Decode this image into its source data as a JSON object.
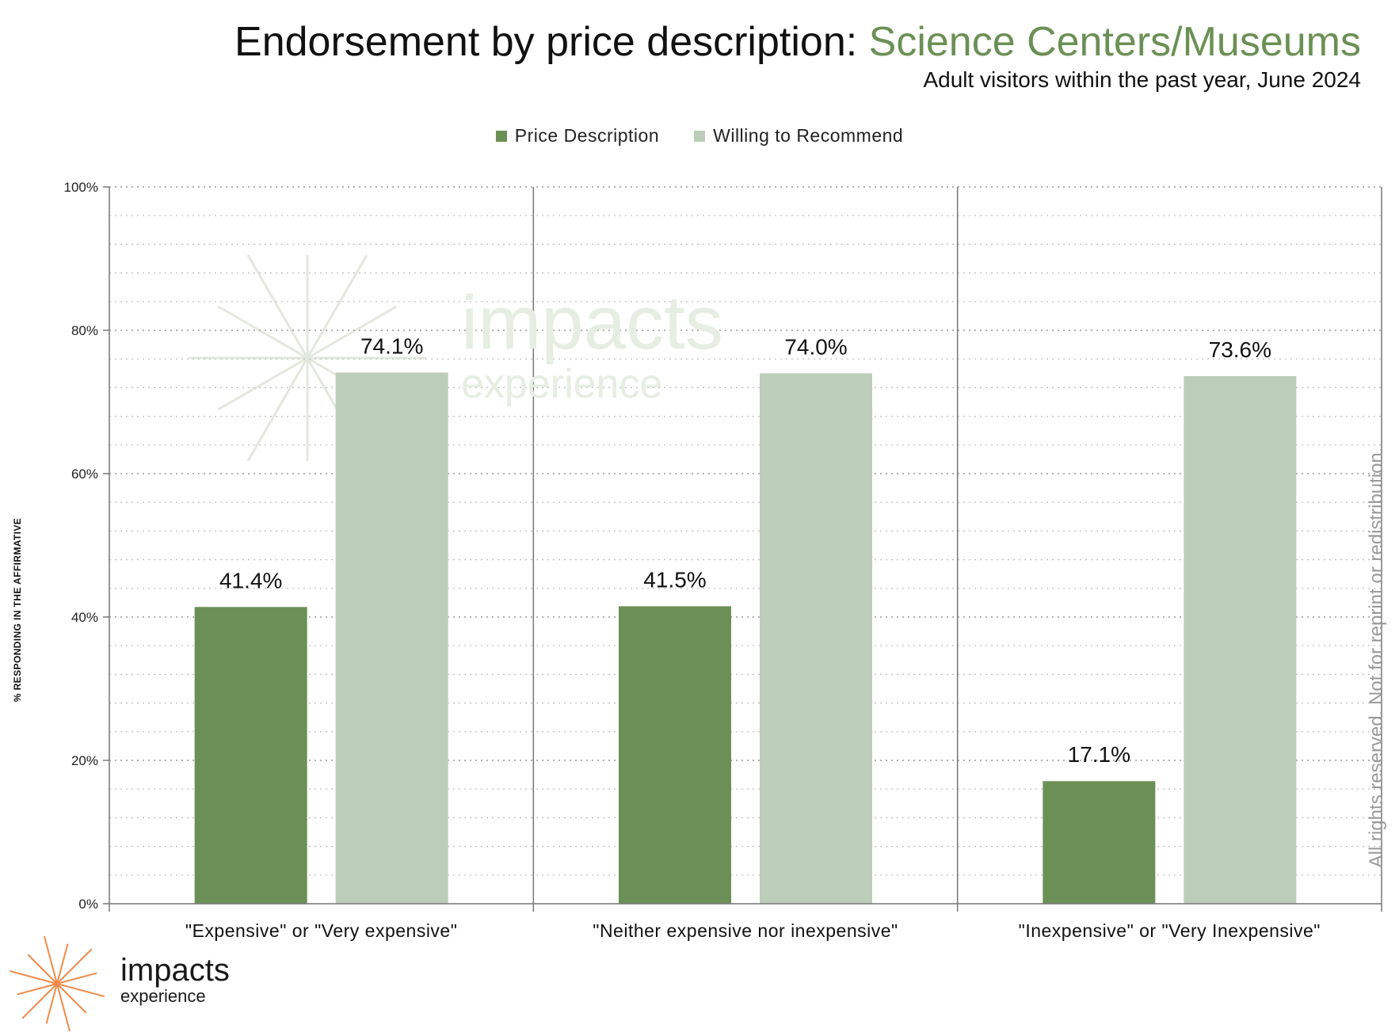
{
  "header": {
    "title_prefix": "Endorsement by price description: ",
    "title_accent": "Science Centers/Museums",
    "subtitle": "Adult visitors within the past year, June 2024"
  },
  "colors": {
    "price_description": "#6b9055",
    "willing_to_recommend": "#bccdb9",
    "accent": "#6b9055",
    "logo": "#f08a4b"
  },
  "watermark": "All rights reserved. Not for reprint or redistribution.",
  "logo": {
    "main": "impacts",
    "sub": "experience"
  },
  "chart_data": {
    "type": "bar",
    "categories": [
      "\"Expensive\" or \"Very expensive\"",
      "\"Neither expensive nor inexpensive\"",
      "\"Inexpensive\" or \"Very Inexpensive\""
    ],
    "series": [
      {
        "name": "Price Description",
        "values": [
          41.4,
          41.5,
          17.1
        ],
        "labels": [
          "41.4%",
          "41.5%",
          "17.1%"
        ]
      },
      {
        "name": "Willing to Recommend",
        "values": [
          74.1,
          74.0,
          73.6
        ],
        "labels": [
          "74.1%",
          "74.0%",
          "73.6%"
        ]
      }
    ],
    "ylabel": "% RESPONDING IN THE AFFIRMATIVE",
    "ylim": [
      0,
      100
    ],
    "yticks": [
      "0%",
      "20%",
      "40%",
      "60%",
      "80%",
      "100%"
    ],
    "legend": "top-center",
    "grid": true
  }
}
